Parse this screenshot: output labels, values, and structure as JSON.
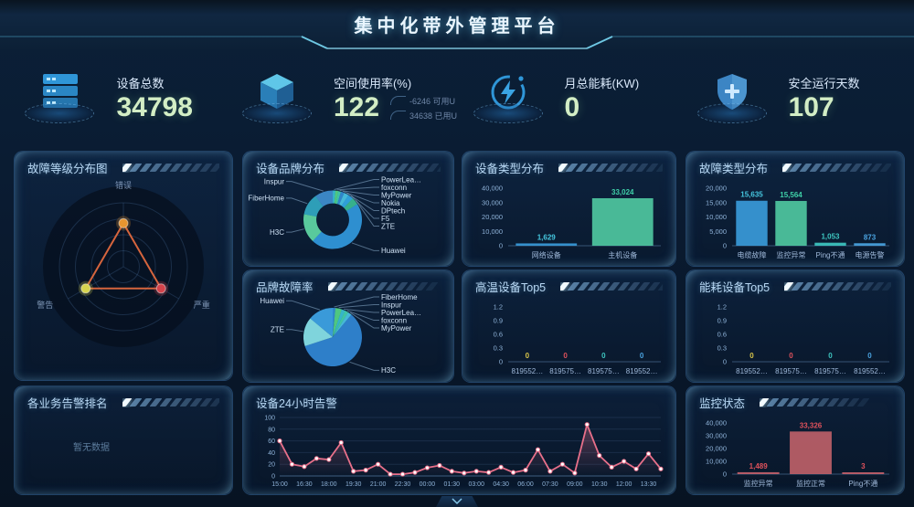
{
  "header": {
    "title": "集中化带外管理平台"
  },
  "kpis": [
    {
      "icon": "server-icon",
      "label": "设备总数",
      "value": "34798"
    },
    {
      "icon": "cube-icon",
      "label": "空间使用率(%)",
      "value": "122",
      "extras": [
        {
          "text": "-6246 可用U"
        },
        {
          "text": "34638 已用U"
        }
      ]
    },
    {
      "icon": "bolt-icon",
      "label": "月总能耗(KW)",
      "value": "0"
    },
    {
      "icon": "shield-icon",
      "label": "安全运行天数",
      "value": "107"
    }
  ],
  "panels": {
    "fault_level": {
      "title": "故障等级分布图"
    },
    "brand_dist": {
      "title": "设备品牌分布"
    },
    "device_type": {
      "title": "设备类型分布"
    },
    "fault_type": {
      "title": "故障类型分布"
    },
    "brand_fault": {
      "title": "品牌故障率"
    },
    "high_temp": {
      "title": "高温设备Top5"
    },
    "energy": {
      "title": "能耗设备Top5"
    },
    "biz_rank": {
      "title": "各业务告警排名",
      "empty_text": "暂无数据"
    },
    "alarms24": {
      "title": "设备24小时告警"
    },
    "monitor": {
      "title": "监控状态"
    }
  },
  "footer": {
    "toggle_icon": "chevron-down-icon"
  },
  "chart_data": [
    {
      "id": "fault_level",
      "type": "radar",
      "title": "故障等级分布图",
      "axes": [
        "错误",
        "严重",
        "警告"
      ],
      "values": [
        0.68,
        0.68,
        0.68
      ],
      "max": 1,
      "point_colors": [
        "#e8952f",
        "#d4434b",
        "#d6d44e"
      ],
      "line_color": "#e0693f"
    },
    {
      "id": "brand_dist",
      "type": "pie",
      "donut": true,
      "title": "设备品牌分布",
      "slices": [
        {
          "name": "PowerLea…",
          "value": 1.5,
          "color": "#35b5c9"
        },
        {
          "name": "foxconn",
          "value": 1.5,
          "color": "#4fc77f"
        },
        {
          "name": "MyPower",
          "value": 1.5,
          "color": "#3fc3a4"
        },
        {
          "name": "Nokia",
          "value": 2,
          "color": "#2f86c9"
        },
        {
          "name": "DPtech",
          "value": 2.5,
          "color": "#46b8d8"
        },
        {
          "name": "F5",
          "value": 3,
          "color": "#2f9fd9"
        },
        {
          "name": "ZTE",
          "value": 4,
          "color": "#36b08c"
        },
        {
          "name": "Huawei",
          "value": 46,
          "color": "#2e8fd0"
        },
        {
          "name": "H3C",
          "value": 16,
          "color": "#59c99c"
        },
        {
          "name": "FiberHome",
          "value": 12,
          "color": "#2e9eb8"
        },
        {
          "name": "Inspur",
          "value": 10,
          "color": "#3b86c4"
        }
      ]
    },
    {
      "id": "device_type",
      "type": "bar",
      "title": "设备类型分布",
      "categories": [
        "网络设备",
        "主机设备"
      ],
      "values": [
        1629,
        33024
      ],
      "colors": [
        "#3a9ad9",
        "#4fc7a0"
      ],
      "value_colors": [
        "#46c8e0",
        "#3fd0a8"
      ],
      "ylim": [
        0,
        40000
      ],
      "yticks": [
        0,
        10000,
        20000,
        30000,
        40000
      ]
    },
    {
      "id": "fault_type",
      "type": "bar",
      "title": "故障类型分布",
      "categories": [
        "电缆故障",
        "监控异常",
        "Ping不通",
        "电源告警"
      ],
      "values": [
        15635,
        15564,
        1053,
        873
      ],
      "colors": [
        "#3a9ad9",
        "#4fc7a0",
        "#3ec6c0",
        "#4aa3e0"
      ],
      "value_colors": [
        "#46c8e0",
        "#3fd0a8",
        "#3ec6c0",
        "#4aa3e0"
      ],
      "ylim": [
        0,
        20000
      ],
      "yticks": [
        0,
        5000,
        10000,
        15000,
        20000
      ]
    },
    {
      "id": "brand_fault",
      "type": "pie",
      "donut": false,
      "title": "品牌故障率",
      "slices": [
        {
          "name": "FiberHome",
          "value": 1.5,
          "color": "#2f86c9"
        },
        {
          "name": "Inspur",
          "value": 3.5,
          "color": "#4fc77f"
        },
        {
          "name": "PowerLea…",
          "value": 2,
          "color": "#35b5c9"
        },
        {
          "name": "foxconn",
          "value": 2,
          "color": "#3fc3a4"
        },
        {
          "name": "MyPower",
          "value": 2,
          "color": "#46b8d8"
        },
        {
          "name": "H3C",
          "value": 59,
          "color": "#2e7fc9"
        },
        {
          "name": "ZTE",
          "value": 16,
          "color": "#7fd4dc"
        },
        {
          "name": "Huawei",
          "value": 14,
          "color": "#3a9ad9"
        }
      ]
    },
    {
      "id": "high_temp",
      "type": "bar",
      "title": "高温设备Top5",
      "categories": [
        "819552…",
        "819575…",
        "819575…",
        "819552…"
      ],
      "values": [
        0,
        0,
        0,
        0
      ],
      "colors": [
        "#d8c54a",
        "#d9454a",
        "#3ec6c0",
        "#3a9ad9"
      ],
      "value_colors": [
        "#d8c54a",
        "#e0525c",
        "#3ec6c0",
        "#4aa3e0"
      ],
      "ylim": [
        0,
        1.2
      ],
      "yticks": [
        0,
        0.3,
        0.6,
        0.9,
        1.2
      ]
    },
    {
      "id": "energy",
      "type": "bar",
      "title": "能耗设备Top5",
      "categories": [
        "819552…",
        "819575…",
        "819575…",
        "819552…"
      ],
      "values": [
        0,
        0,
        0,
        0
      ],
      "colors": [
        "#d8c54a",
        "#d9454a",
        "#3ec6c0",
        "#3a9ad9"
      ],
      "value_colors": [
        "#d8c54a",
        "#e0525c",
        "#3ec6c0",
        "#4aa3e0"
      ],
      "ylim": [
        0,
        1.2
      ],
      "yticks": [
        0,
        0.3,
        0.6,
        0.9,
        1.2
      ]
    },
    {
      "id": "alarms24",
      "type": "line",
      "title": "设备24小时告警",
      "x_ticks": [
        "15:00",
        "16:30",
        "18:00",
        "19:30",
        "21:00",
        "22:30",
        "00:00",
        "01:30",
        "03:00",
        "04:30",
        "06:00",
        "07:30",
        "09:00",
        "10:30",
        "12:00",
        "13:30"
      ],
      "tick_every": 2,
      "values": [
        60,
        20,
        16,
        30,
        28,
        57,
        8,
        10,
        20,
        3,
        3,
        6,
        14,
        18,
        8,
        5,
        8,
        6,
        15,
        6,
        10,
        45,
        8,
        20,
        5,
        88,
        35,
        15,
        25,
        12,
        38,
        12
      ],
      "ylim": [
        0,
        100
      ],
      "yticks": [
        0,
        20,
        40,
        60,
        80,
        100
      ],
      "line_color": "#e8708a",
      "marker_color": "#ffffff",
      "grid": true
    },
    {
      "id": "monitor",
      "type": "bar",
      "title": "监控状态",
      "categories": [
        "监控异常",
        "监控正常",
        "Ping不通"
      ],
      "values": [
        1489,
        33326,
        3
      ],
      "colors": [
        "#c2606a",
        "#bd5f68",
        "#c2606a"
      ],
      "value_colors": [
        "#e0525c",
        "#e0525c",
        "#e0525c"
      ],
      "ylim": [
        0,
        40000
      ],
      "yticks": [
        0,
        10000,
        20000,
        30000,
        40000
      ]
    }
  ]
}
